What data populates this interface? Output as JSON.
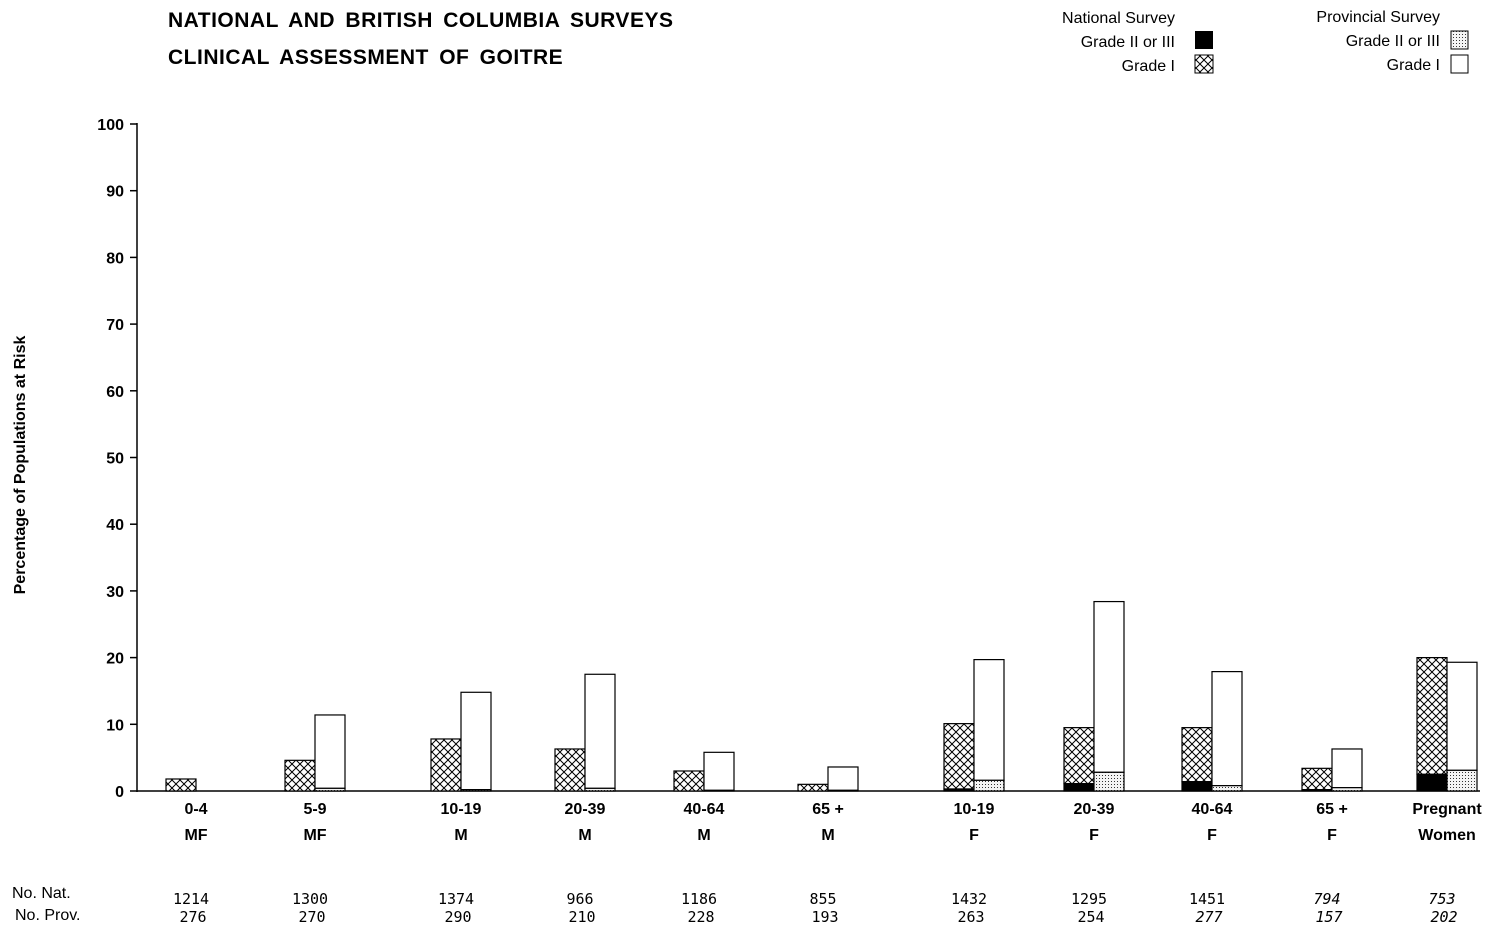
{
  "title_line1": "NATIONAL AND BRITISH COLUMBIA SURVEYS",
  "title_line2": "CLINICAL ASSESSMENT OF GOITRE",
  "legend": {
    "national_heading": "National Survey",
    "provincial_heading": "Provincial Survey",
    "grade23_label": "Grade II or III",
    "grade1_label": "Grade I"
  },
  "row_labels": {
    "nat": "No. Nat.",
    "prov": "No. Prov."
  },
  "chart_data": {
    "type": "bar",
    "title": "NATIONAL AND BRITISH COLUMBIA SURVEYS CLINICAL ASSESSMENT OF GOITRE",
    "ylabel": "Percentage of Populations at Risk",
    "ylim": [
      0,
      100
    ],
    "yticks": [
      0,
      10,
      20,
      30,
      40,
      50,
      60,
      70,
      80,
      90,
      100
    ],
    "grid": false,
    "legend_position": "top-right",
    "stacked": true,
    "categories": [
      {
        "age": "0-4",
        "group": "MF"
      },
      {
        "age": "5-9",
        "group": "MF"
      },
      {
        "age": "10-19",
        "group": "M"
      },
      {
        "age": "20-39",
        "group": "M"
      },
      {
        "age": "40-64",
        "group": "M"
      },
      {
        "age": "65 +",
        "group": "M"
      },
      {
        "age": "10-19",
        "group": "F"
      },
      {
        "age": "20-39",
        "group": "F"
      },
      {
        "age": "40-64",
        "group": "F"
      },
      {
        "age": "65 +",
        "group": "F"
      },
      {
        "age": "Pregnant",
        "group": "Women"
      }
    ],
    "series": [
      {
        "survey": "National Survey",
        "grade": "Grade II or III",
        "color": "#000000",
        "pattern": "solid",
        "values": [
          0,
          0,
          0,
          0,
          0,
          0,
          0.3,
          1.1,
          1.4,
          0.2,
          2.5
        ]
      },
      {
        "survey": "National Survey",
        "grade": "Grade I",
        "color": "#000000",
        "pattern": "crosshatch",
        "values": [
          1.8,
          4.6,
          7.8,
          6.3,
          3.0,
          1.0,
          9.8,
          8.4,
          8.1,
          3.2,
          17.5
        ]
      },
      {
        "survey": "Provincial Survey",
        "grade": "Grade II or III",
        "color": "#000000",
        "pattern": "stipple",
        "values": [
          0,
          0.4,
          0.2,
          0.4,
          0.1,
          0.1,
          1.6,
          2.8,
          0.8,
          0.5,
          3.1
        ]
      },
      {
        "survey": "Provincial Survey",
        "grade": "Grade I",
        "color": "#ffffff",
        "pattern": "open",
        "values": [
          0,
          11.0,
          14.6,
          17.1,
          5.7,
          3.5,
          18.1,
          25.6,
          17.1,
          5.8,
          16.2
        ]
      }
    ],
    "n_national": [
      "1214",
      "1300",
      "1374",
      "966",
      "1186",
      "855",
      "1432",
      "1295",
      "1451",
      "794",
      "753"
    ],
    "n_provincial": [
      "276",
      "270",
      "290",
      "210",
      "228",
      "193",
      "263",
      "254",
      "277",
      "157",
      "202"
    ]
  }
}
